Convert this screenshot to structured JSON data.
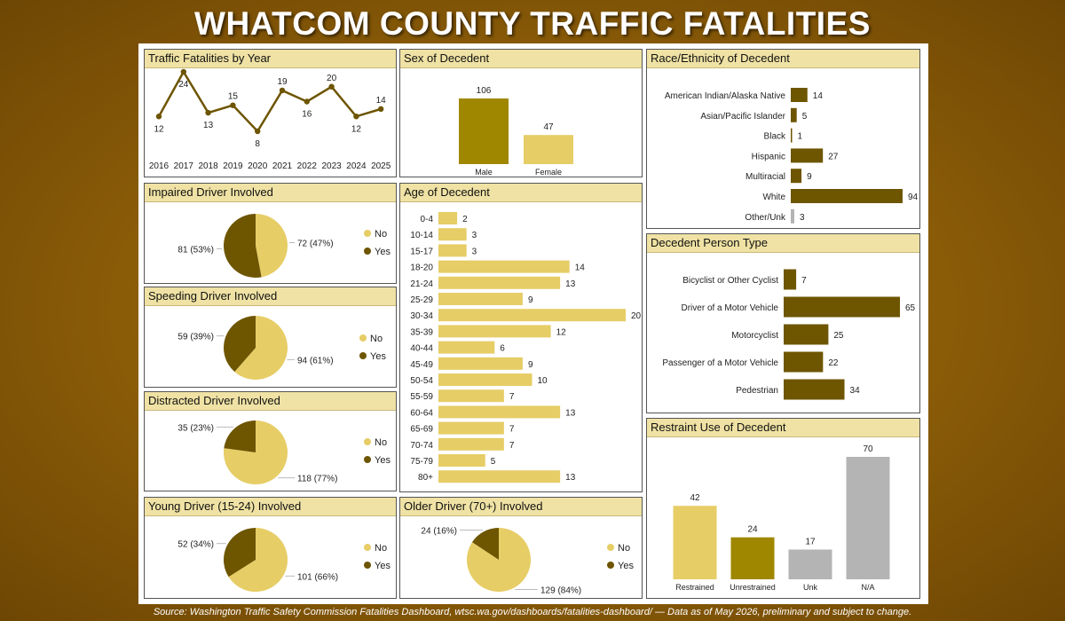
{
  "page": {
    "title": "WHATCOM COUNTY TRAFFIC FATALITIES",
    "source": "Source: Washington Traffic Safety Commission Fatalities Dashboard, wtsc.wa.gov/dashboards/fatalities-dashboard/ — Data as of May 2026, preliminary and subject to change."
  },
  "colors": {
    "dark": "#6e5500",
    "medium": "#a08700",
    "light": "#e6cd66",
    "gray": "#b4b4b4",
    "header_bg": "#efe2a4",
    "background": "#8a5c08"
  },
  "chart_data": [
    {
      "id": "by_year",
      "type": "line",
      "title": "Traffic Fatalities by Year",
      "x": [
        "2016",
        "2017",
        "2018",
        "2019",
        "2020",
        "2021",
        "2022",
        "2023",
        "2024",
        "2025"
      ],
      "values": [
        12,
        24,
        13,
        15,
        8,
        19,
        16,
        20,
        12,
        14
      ]
    },
    {
      "id": "sex",
      "type": "bar",
      "title": "Sex of Decedent",
      "categories": [
        "Male",
        "Female"
      ],
      "values": [
        106,
        47
      ],
      "colors": [
        "#a08700",
        "#e6cd66"
      ]
    },
    {
      "id": "race",
      "type": "bar",
      "orientation": "horizontal",
      "title": "Race/Ethnicity of Decedent",
      "categories": [
        "American Indian/Alaska Native",
        "Asian/Pacific Islander",
        "Black",
        "Hispanic",
        "Multiracial",
        "White",
        "Other/Unk"
      ],
      "values": [
        14,
        5,
        1,
        27,
        9,
        94,
        3
      ],
      "colors": [
        "#6e5500",
        "#6e5500",
        "#6e5500",
        "#6e5500",
        "#6e5500",
        "#6e5500",
        "#b4b4b4"
      ]
    },
    {
      "id": "impaired",
      "type": "pie",
      "title": "Impaired Driver Involved",
      "categories": [
        "No",
        "Yes"
      ],
      "values": [
        72,
        81
      ],
      "labels": [
        "72 (47%)",
        "81 (53%)"
      ],
      "colors": [
        "#e6cd66",
        "#6e5500"
      ]
    },
    {
      "id": "age",
      "type": "bar",
      "orientation": "horizontal",
      "title": "Age of Decedent",
      "categories": [
        "0-4",
        "10-14",
        "15-17",
        "18-20",
        "21-24",
        "25-29",
        "30-34",
        "35-39",
        "40-44",
        "45-49",
        "50-54",
        "55-59",
        "60-64",
        "65-69",
        "70-74",
        "75-79",
        "80+"
      ],
      "values": [
        2,
        3,
        3,
        14,
        13,
        9,
        20,
        12,
        6,
        9,
        10,
        7,
        13,
        7,
        7,
        5,
        13
      ],
      "colors": [
        "#e6cd66"
      ]
    },
    {
      "id": "person_type",
      "type": "bar",
      "orientation": "horizontal",
      "title": "Decedent Person Type",
      "categories": [
        "Bicyclist or Other Cyclist",
        "Driver of a Motor Vehicle",
        "Motorcyclist",
        "Passenger of a Motor Vehicle",
        "Pedestrian"
      ],
      "values": [
        7,
        65,
        25,
        22,
        34
      ],
      "colors": [
        "#6e5500"
      ]
    },
    {
      "id": "speeding",
      "type": "pie",
      "title": "Speeding Driver Involved",
      "categories": [
        "No",
        "Yes"
      ],
      "values": [
        94,
        59
      ],
      "labels": [
        "94 (61%)",
        "59 (39%)"
      ],
      "colors": [
        "#e6cd66",
        "#6e5500"
      ]
    },
    {
      "id": "distracted",
      "type": "pie",
      "title": "Distracted Driver Involved",
      "categories": [
        "No",
        "Yes"
      ],
      "values": [
        118,
        35
      ],
      "labels": [
        "118 (77%)",
        "35 (23%)"
      ],
      "colors": [
        "#e6cd66",
        "#6e5500"
      ]
    },
    {
      "id": "restraint",
      "type": "bar",
      "title": "Restraint Use of Decedent",
      "categories": [
        "Restrained",
        "Unrestrained",
        "Unk",
        "N/A"
      ],
      "values": [
        42,
        24,
        17,
        70
      ],
      "colors": [
        "#e6cd66",
        "#a08700",
        "#b4b4b4",
        "#b4b4b4"
      ]
    },
    {
      "id": "young",
      "type": "pie",
      "title": "Young Driver (15-24) Involved",
      "categories": [
        "No",
        "Yes"
      ],
      "values": [
        101,
        52
      ],
      "labels": [
        "101 (66%)",
        "52 (34%)"
      ],
      "colors": [
        "#e6cd66",
        "#6e5500"
      ]
    },
    {
      "id": "older",
      "type": "pie",
      "title": "Older Driver (70+) Involved",
      "categories": [
        "No",
        "Yes"
      ],
      "values": [
        129,
        24
      ],
      "labels": [
        "129 (84%)",
        "24 (16%)"
      ],
      "colors": [
        "#e6cd66",
        "#6e5500"
      ]
    }
  ]
}
